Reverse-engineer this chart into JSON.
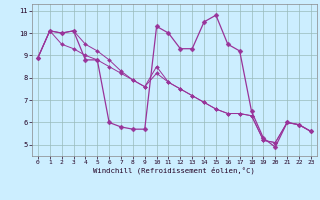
{
  "xlabel": "Windchill (Refroidissement éolien,°C)",
  "background_color": "#cceeff",
  "line_color": "#993399",
  "grid_color": "#99bbbb",
  "x": [
    0,
    1,
    2,
    3,
    4,
    5,
    6,
    7,
    8,
    9,
    10,
    11,
    12,
    13,
    14,
    15,
    16,
    17,
    18,
    19,
    20,
    21,
    22,
    23
  ],
  "curve_jagged": [
    8.9,
    10.1,
    10.0,
    10.1,
    8.8,
    8.8,
    6.0,
    5.8,
    5.7,
    5.7,
    10.3,
    10.0,
    9.3,
    9.3,
    10.5,
    10.8,
    9.5,
    9.2,
    6.5,
    5.3,
    4.9,
    6.0,
    5.9,
    5.6
  ],
  "line_straight1": [
    8.9,
    10.1,
    10.0,
    10.1,
    9.5,
    9.2,
    8.8,
    8.3,
    7.9,
    7.6,
    8.5,
    7.8,
    7.5,
    7.2,
    6.9,
    6.6,
    6.4,
    6.4,
    6.3,
    5.2,
    5.1,
    6.0,
    5.9,
    5.6
  ],
  "line_straight2": [
    8.9,
    10.1,
    9.5,
    9.3,
    9.0,
    8.8,
    8.5,
    8.2,
    7.9,
    7.6,
    8.2,
    7.8,
    7.5,
    7.2,
    6.9,
    6.6,
    6.4,
    6.4,
    6.3,
    5.2,
    5.1,
    6.0,
    5.9,
    5.6
  ],
  "ylim": [
    4.5,
    11.3
  ],
  "yticks": [
    5,
    6,
    7,
    8,
    9,
    10,
    11
  ],
  "xticks": [
    0,
    1,
    2,
    3,
    4,
    5,
    6,
    7,
    8,
    9,
    10,
    11,
    12,
    13,
    14,
    15,
    16,
    17,
    18,
    19,
    20,
    21,
    22,
    23
  ]
}
